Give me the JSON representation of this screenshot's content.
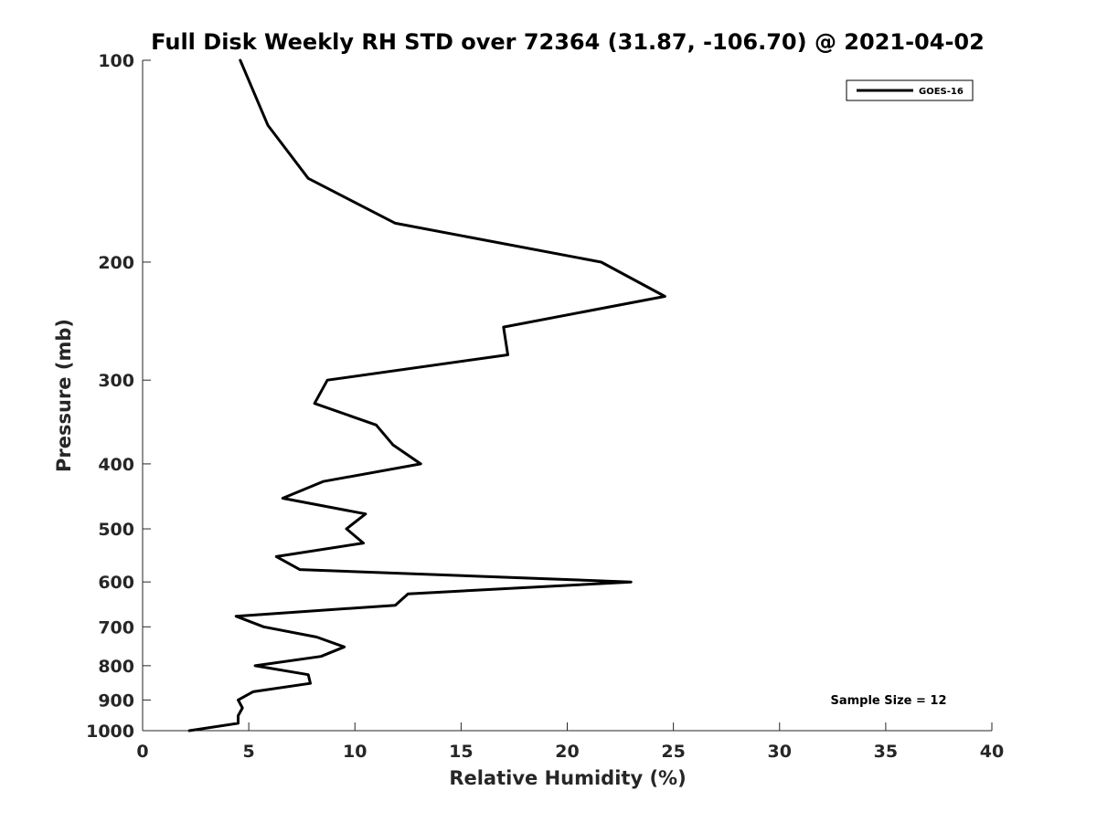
{
  "chart_data": {
    "type": "line",
    "title": "Full Disk Weekly RH STD over 72364 (31.87, -106.70) @ 2021-04-02",
    "xlabel": "Relative Humidity (%)",
    "ylabel": "Pressure (mb)",
    "xlim": [
      0,
      40
    ],
    "ylim": [
      100,
      1000
    ],
    "y_scale": "log",
    "y_reversed": true,
    "xticks": [
      0,
      5,
      10,
      15,
      20,
      25,
      30,
      35,
      40
    ],
    "yticks": [
      100,
      200,
      300,
      400,
      500,
      600,
      700,
      800,
      900,
      1000
    ],
    "grid": false,
    "legend_position": "top-right",
    "annotation": "Sample Size = 12",
    "series": [
      {
        "name": "GOES-16",
        "color": "#000000",
        "points": [
          [
            4.6,
            100
          ],
          [
            5.9,
            125
          ],
          [
            7.8,
            150
          ],
          [
            11.9,
            175
          ],
          [
            21.6,
            200
          ],
          [
            24.6,
            225
          ],
          [
            17.0,
            250
          ],
          [
            17.2,
            275
          ],
          [
            8.7,
            300
          ],
          [
            8.1,
            325
          ],
          [
            11.0,
            350
          ],
          [
            11.8,
            375
          ],
          [
            13.1,
            400
          ],
          [
            8.5,
            425
          ],
          [
            6.6,
            450
          ],
          [
            10.5,
            475
          ],
          [
            9.6,
            500
          ],
          [
            10.4,
            525
          ],
          [
            6.3,
            550
          ],
          [
            7.4,
            575
          ],
          [
            23.0,
            600
          ],
          [
            12.5,
            625
          ],
          [
            11.9,
            650
          ],
          [
            4.4,
            675
          ],
          [
            5.7,
            700
          ],
          [
            8.2,
            725
          ],
          [
            9.5,
            750
          ],
          [
            8.4,
            775
          ],
          [
            5.3,
            800
          ],
          [
            7.8,
            825
          ],
          [
            7.9,
            850
          ],
          [
            5.2,
            875
          ],
          [
            4.5,
            900
          ],
          [
            4.7,
            925
          ],
          [
            4.5,
            950
          ],
          [
            4.5,
            975
          ],
          [
            2.2,
            1000
          ]
        ]
      }
    ]
  }
}
